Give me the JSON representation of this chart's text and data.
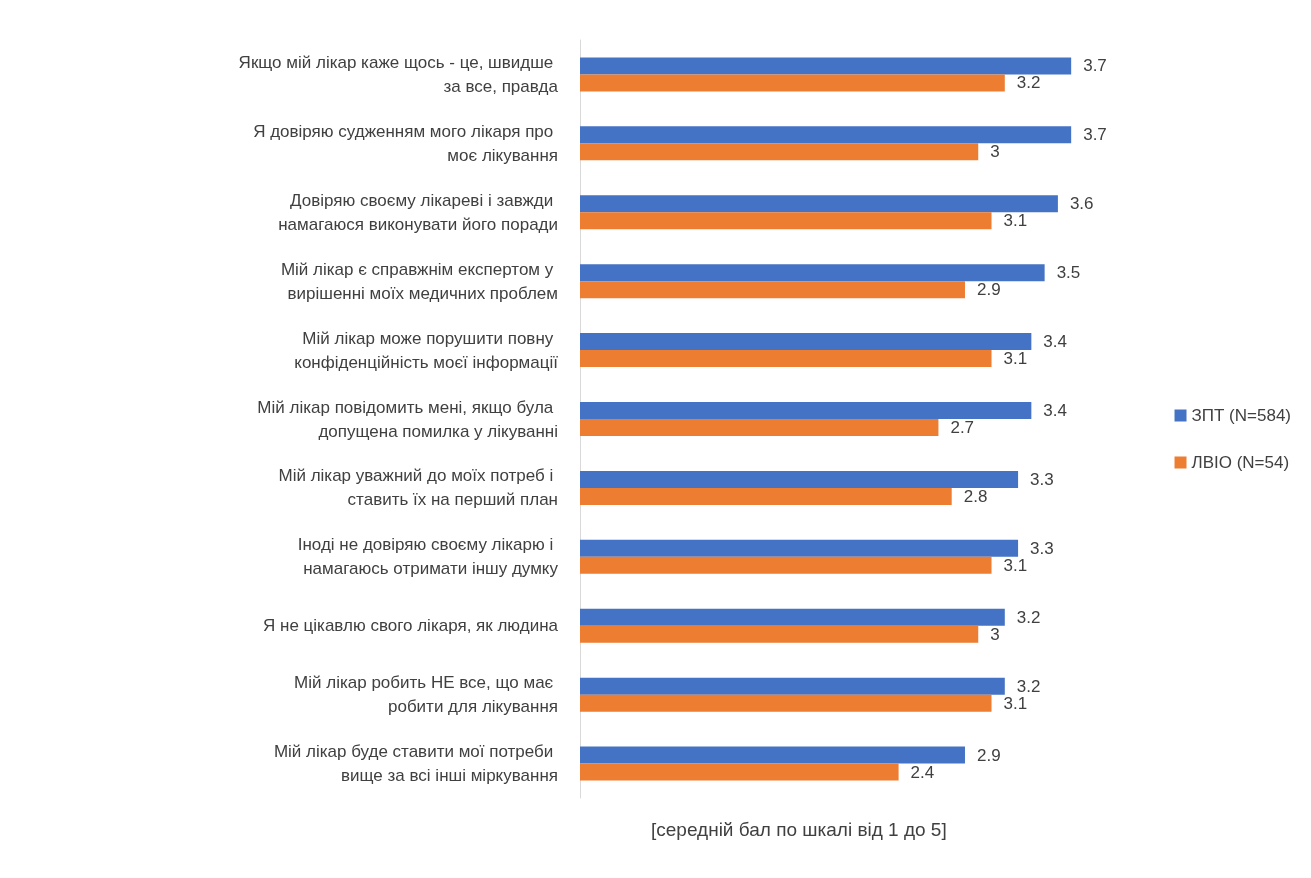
{
  "chart_data": {
    "type": "bar",
    "orientation": "horizontal",
    "xlabel": "[середній бал по шкалі від 1 до 5]",
    "categories": [
      "Якщо мій лікар каже щось - це, швидше за все, правда",
      "Я довіряю судженням мого лікаря про моє лікування",
      "Довіряю своєму лікареві і завжди намагаюся виконувати його поради",
      "Мій лікар є справжнім експертом у вирішенні моїх медичних проблем",
      "Мій лікар може порушити повну конфіденційність моєї інформації",
      "Мій лікар повідомить мені, якщо була допущена помилка у лікуванні",
      "Мій лікар уважний до моїх потреб і ставить їх на перший план",
      "Іноді не довіряю своєму лікарю і намагаюсь отримати іншу думку",
      "Я не цікавлю свого лікаря, як людина",
      "Мій лікар робить НЕ все, що має робити для лікування",
      "Мій лікар буде ставити мої потреби вище за всі інші міркування"
    ],
    "series": [
      {
        "name": "ЗПТ (N=584)",
        "color": "#4472c4",
        "values": [
          3.7,
          3.7,
          3.6,
          3.5,
          3.4,
          3.4,
          3.3,
          3.3,
          3.2,
          3.2,
          2.9
        ]
      },
      {
        "name": "ЛВІО (N=54)",
        "color": "#ed7d31",
        "values": [
          3.2,
          3,
          3.1,
          2.9,
          3.1,
          2.7,
          2.8,
          3.1,
          3,
          3.1,
          2.4
        ]
      }
    ],
    "data_labels": true,
    "legend": "right"
  }
}
